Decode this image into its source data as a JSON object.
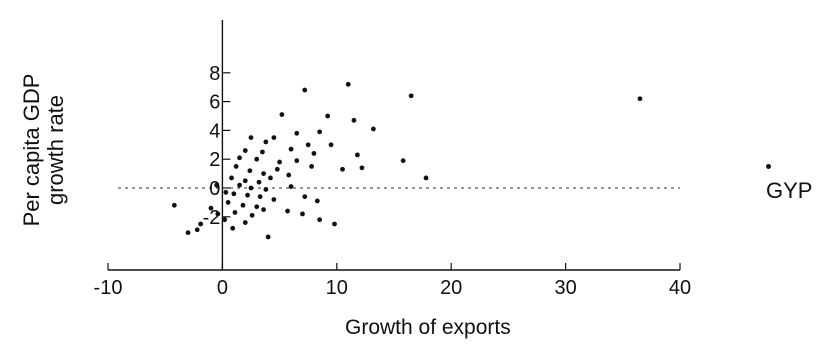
{
  "chart_data": {
    "type": "scatter",
    "title": "",
    "xlabel": "Growth of exports",
    "ylabel": "Per capita GDP growth rate",
    "ylabel_lines": [
      "Per capita GDP",
      "growth rate"
    ],
    "xlim": [
      -10,
      40
    ],
    "ylim": [
      -5,
      8
    ],
    "x_ticks": [
      -10,
      0,
      10,
      20,
      30,
      40
    ],
    "y_ticks": [
      -2,
      0,
      2,
      4,
      6,
      8
    ],
    "zero_reference_line": true,
    "grid": false,
    "legend_position": "right",
    "series": [
      {
        "name": "GYP",
        "color": "#111111",
        "points": [
          [
            36.5,
            6.2
          ],
          [
            16.5,
            6.4
          ],
          [
            11.0,
            7.2
          ],
          [
            7.2,
            6.8
          ],
          [
            5.2,
            5.1
          ],
          [
            9.2,
            5.0
          ],
          [
            11.5,
            4.7
          ],
          [
            13.2,
            4.1
          ],
          [
            6.5,
            3.8
          ],
          [
            8.5,
            3.9
          ],
          [
            4.5,
            3.5
          ],
          [
            2.5,
            3.5
          ],
          [
            3.8,
            3.2
          ],
          [
            7.5,
            3.0
          ],
          [
            9.5,
            3.0
          ],
          [
            11.8,
            2.3
          ],
          [
            2.0,
            2.6
          ],
          [
            3.5,
            2.5
          ],
          [
            6.0,
            2.7
          ],
          [
            8.0,
            2.4
          ],
          [
            1.5,
            2.1
          ],
          [
            3.0,
            2.0
          ],
          [
            5.0,
            1.8
          ],
          [
            6.5,
            1.9
          ],
          [
            7.8,
            1.5
          ],
          [
            15.8,
            1.9
          ],
          [
            10.5,
            1.3
          ],
          [
            12.2,
            1.4
          ],
          [
            1.2,
            1.5
          ],
          [
            2.4,
            1.2
          ],
          [
            3.6,
            1.0
          ],
          [
            4.8,
            1.3
          ],
          [
            5.8,
            0.9
          ],
          [
            0.8,
            0.7
          ],
          [
            2.0,
            0.5
          ],
          [
            3.2,
            0.4
          ],
          [
            4.2,
            0.7
          ],
          [
            17.8,
            0.7
          ],
          [
            -0.5,
            0.2
          ],
          [
            1.5,
            0.2
          ],
          [
            2.5,
            0.0
          ],
          [
            3.8,
            -0.1
          ],
          [
            6.0,
            0.1
          ],
          [
            0.3,
            -0.3
          ],
          [
            1.0,
            -0.4
          ],
          [
            2.2,
            -0.5
          ],
          [
            3.3,
            -0.6
          ],
          [
            4.5,
            -0.8
          ],
          [
            7.2,
            -0.6
          ],
          [
            8.3,
            -0.9
          ],
          [
            0.5,
            -1.0
          ],
          [
            1.8,
            -1.2
          ],
          [
            3.0,
            -1.3
          ],
          [
            -1.0,
            -1.4
          ],
          [
            -0.4,
            -1.8
          ],
          [
            1.1,
            -1.7
          ],
          [
            2.6,
            -1.9
          ],
          [
            3.6,
            -1.5
          ],
          [
            5.7,
            -1.6
          ],
          [
            7.0,
            -1.8
          ],
          [
            0.2,
            -2.2
          ],
          [
            2.0,
            -2.4
          ],
          [
            8.5,
            -2.2
          ],
          [
            9.8,
            -2.5
          ],
          [
            -1.9,
            -2.5
          ],
          [
            -4.2,
            -1.2
          ],
          [
            -3.0,
            -3.1
          ],
          [
            4.0,
            -3.4
          ],
          [
            0.9,
            -2.8
          ],
          [
            -2.2,
            -2.9
          ]
        ]
      }
    ]
  }
}
